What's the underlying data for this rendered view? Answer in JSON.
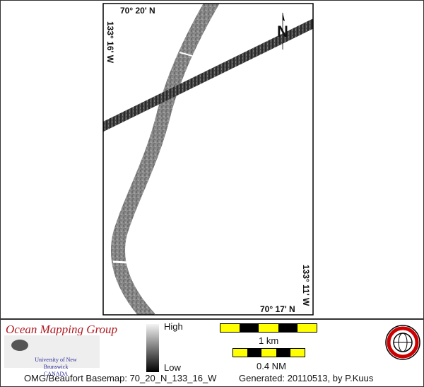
{
  "map": {
    "labels": {
      "top_lat": "70° 20' N",
      "left_lon": "133° 16' W",
      "right_lon": "133° 11' W",
      "bottom_lat": "70° 17' N"
    },
    "north_arrow": "N"
  },
  "legend": {
    "group_name": "Ocean Mapping Group",
    "university": "University of New Brunswick",
    "country": "CANADA",
    "ramp_high": "High",
    "ramp_low": "Low",
    "scale_km": "1 km",
    "scale_nm": "0.4 NM",
    "seal_text": "GEODESY AND GEOMATICS ENGINEERING UNB",
    "colors": {
      "scale_light": "#ffff00",
      "scale_dark": "#000000",
      "group_name": "#b0171f"
    }
  },
  "footer": {
    "basemap": "OMG/Beaufort Basemap: 70_20_N_133_16_W",
    "generated": "Generated: 20110513, by P.Kuus"
  }
}
